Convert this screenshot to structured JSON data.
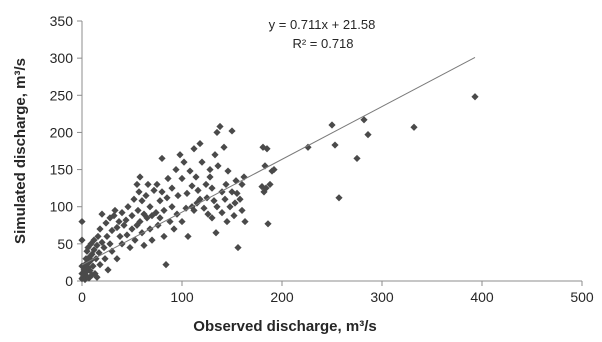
{
  "chart_data": {
    "type": "scatter",
    "xlabel": "Observed discharge, m³/s",
    "ylabel": "Simulated discharge, m³/s",
    "xlim": [
      0,
      500
    ],
    "ylim": [
      0,
      350
    ],
    "xticks": [
      0,
      100,
      200,
      300,
      400,
      500
    ],
    "yticks": [
      0,
      50,
      100,
      150,
      200,
      250,
      300,
      350
    ],
    "grid": false,
    "marker_color": "#4a4a4a",
    "trendline": {
      "slope": 0.711,
      "intercept": 21.58,
      "x_range": [
        0,
        393
      ],
      "color": "#7a7a7a",
      "equation_label": "y = 0.711x + 21.58",
      "r2_label": "R² = 0.718"
    },
    "series": [
      {
        "points": [
          [
            0,
            80
          ],
          [
            0,
            55
          ],
          [
            0,
            20
          ],
          [
            0,
            10
          ],
          [
            0,
            3
          ],
          [
            1,
            5
          ],
          [
            2,
            8
          ],
          [
            2,
            15
          ],
          [
            3,
            2
          ],
          [
            3,
            22
          ],
          [
            4,
            30
          ],
          [
            4,
            12
          ],
          [
            5,
            6
          ],
          [
            5,
            40
          ],
          [
            6,
            18
          ],
          [
            6,
            45
          ],
          [
            7,
            25
          ],
          [
            7,
            4
          ],
          [
            8,
            33
          ],
          [
            8,
            14
          ],
          [
            9,
            50
          ],
          [
            9,
            28
          ],
          [
            10,
            8
          ],
          [
            10,
            36
          ],
          [
            11,
            20
          ],
          [
            12,
            42
          ],
          [
            12,
            55
          ],
          [
            13,
            10
          ],
          [
            14,
            30
          ],
          [
            15,
            48
          ],
          [
            15,
            5
          ],
          [
            16,
            60
          ],
          [
            17,
            38
          ],
          [
            18,
            22
          ],
          [
            18,
            70
          ],
          [
            20,
            52
          ],
          [
            20,
            90
          ],
          [
            22,
            45
          ],
          [
            23,
            30
          ],
          [
            24,
            78
          ],
          [
            25,
            60
          ],
          [
            26,
            15
          ],
          [
            28,
            85
          ],
          [
            28,
            50
          ],
          [
            30,
            68
          ],
          [
            30,
            40
          ],
          [
            32,
            88
          ],
          [
            33,
            95
          ],
          [
            35,
            72
          ],
          [
            35,
            30
          ],
          [
            37,
            80
          ],
          [
            38,
            60
          ],
          [
            40,
            92
          ],
          [
            40,
            50
          ],
          [
            42,
            75
          ],
          [
            44,
            82
          ],
          [
            45,
            62
          ],
          [
            46,
            100
          ],
          [
            48,
            45
          ],
          [
            50,
            88
          ],
          [
            50,
            70
          ],
          [
            52,
            110
          ],
          [
            53,
            55
          ],
          [
            55,
            130
          ],
          [
            55,
            75
          ],
          [
            56,
            95
          ],
          [
            57,
            120
          ],
          [
            58,
            140
          ],
          [
            58,
            80
          ],
          [
            60,
            65
          ],
          [
            60,
            108
          ],
          [
            62,
            48
          ],
          [
            62,
            90
          ],
          [
            64,
            115
          ],
          [
            65,
            85
          ],
          [
            66,
            130
          ],
          [
            68,
            70
          ],
          [
            68,
            100
          ],
          [
            70,
            88
          ],
          [
            70,
            55
          ],
          [
            72,
            122
          ],
          [
            74,
            92
          ],
          [
            75,
            130
          ],
          [
            76,
            75
          ],
          [
            78,
            108
          ],
          [
            78,
            85
          ],
          [
            80,
            165
          ],
          [
            80,
            120
          ],
          [
            82,
            60
          ],
          [
            82,
            95
          ],
          [
            84,
            22
          ],
          [
            85,
            112
          ],
          [
            86,
            138
          ],
          [
            88,
            80
          ],
          [
            90,
            100
          ],
          [
            90,
            125
          ],
          [
            92,
            70
          ],
          [
            94,
            150
          ],
          [
            95,
            90
          ],
          [
            96,
            115
          ],
          [
            98,
            170
          ],
          [
            100,
            138
          ],
          [
            100,
            80
          ],
          [
            102,
            160
          ],
          [
            104,
            98
          ],
          [
            105,
            118
          ],
          [
            106,
            60
          ],
          [
            108,
            148
          ],
          [
            110,
            128
          ],
          [
            110,
            100
          ],
          [
            112,
            95
          ],
          [
            112,
            178
          ],
          [
            114,
            140
          ],
          [
            115,
            105
          ],
          [
            116,
            122
          ],
          [
            118,
            185
          ],
          [
            118,
            110
          ],
          [
            120,
            160
          ],
          [
            122,
            98
          ],
          [
            124,
            130
          ],
          [
            125,
            112
          ],
          [
            126,
            90
          ],
          [
            128,
            150
          ],
          [
            128,
            140
          ],
          [
            130,
            125
          ],
          [
            130,
            85
          ],
          [
            132,
            108
          ],
          [
            133,
            170
          ],
          [
            134,
            65
          ],
          [
            135,
            100
          ],
          [
            135,
            200
          ],
          [
            136,
            155
          ],
          [
            138,
            208
          ],
          [
            140,
            120
          ],
          [
            140,
            92
          ],
          [
            142,
            180
          ],
          [
            143,
            110
          ],
          [
            144,
            130
          ],
          [
            145,
            80
          ],
          [
            146,
            148
          ],
          [
            148,
            100
          ],
          [
            150,
            202
          ],
          [
            150,
            120
          ],
          [
            152,
            88
          ],
          [
            153,
            105
          ],
          [
            154,
            135
          ],
          [
            155,
            118
          ],
          [
            156,
            45
          ],
          [
            158,
            110
          ],
          [
            160,
            130
          ],
          [
            160,
            95
          ],
          [
            162,
            140
          ],
          [
            163,
            80
          ],
          [
            180,
            127
          ],
          [
            181,
            180
          ],
          [
            182,
            120
          ],
          [
            183,
            155
          ],
          [
            184,
            125
          ],
          [
            185,
            178
          ],
          [
            186,
            77
          ],
          [
            188,
            130
          ],
          [
            190,
            148
          ],
          [
            192,
            150
          ],
          [
            226,
            180
          ],
          [
            250,
            210
          ],
          [
            253,
            183
          ],
          [
            257,
            112
          ],
          [
            275,
            165
          ],
          [
            282,
            217
          ],
          [
            286,
            197
          ],
          [
            332,
            207
          ],
          [
            393,
            248
          ]
        ]
      }
    ]
  }
}
